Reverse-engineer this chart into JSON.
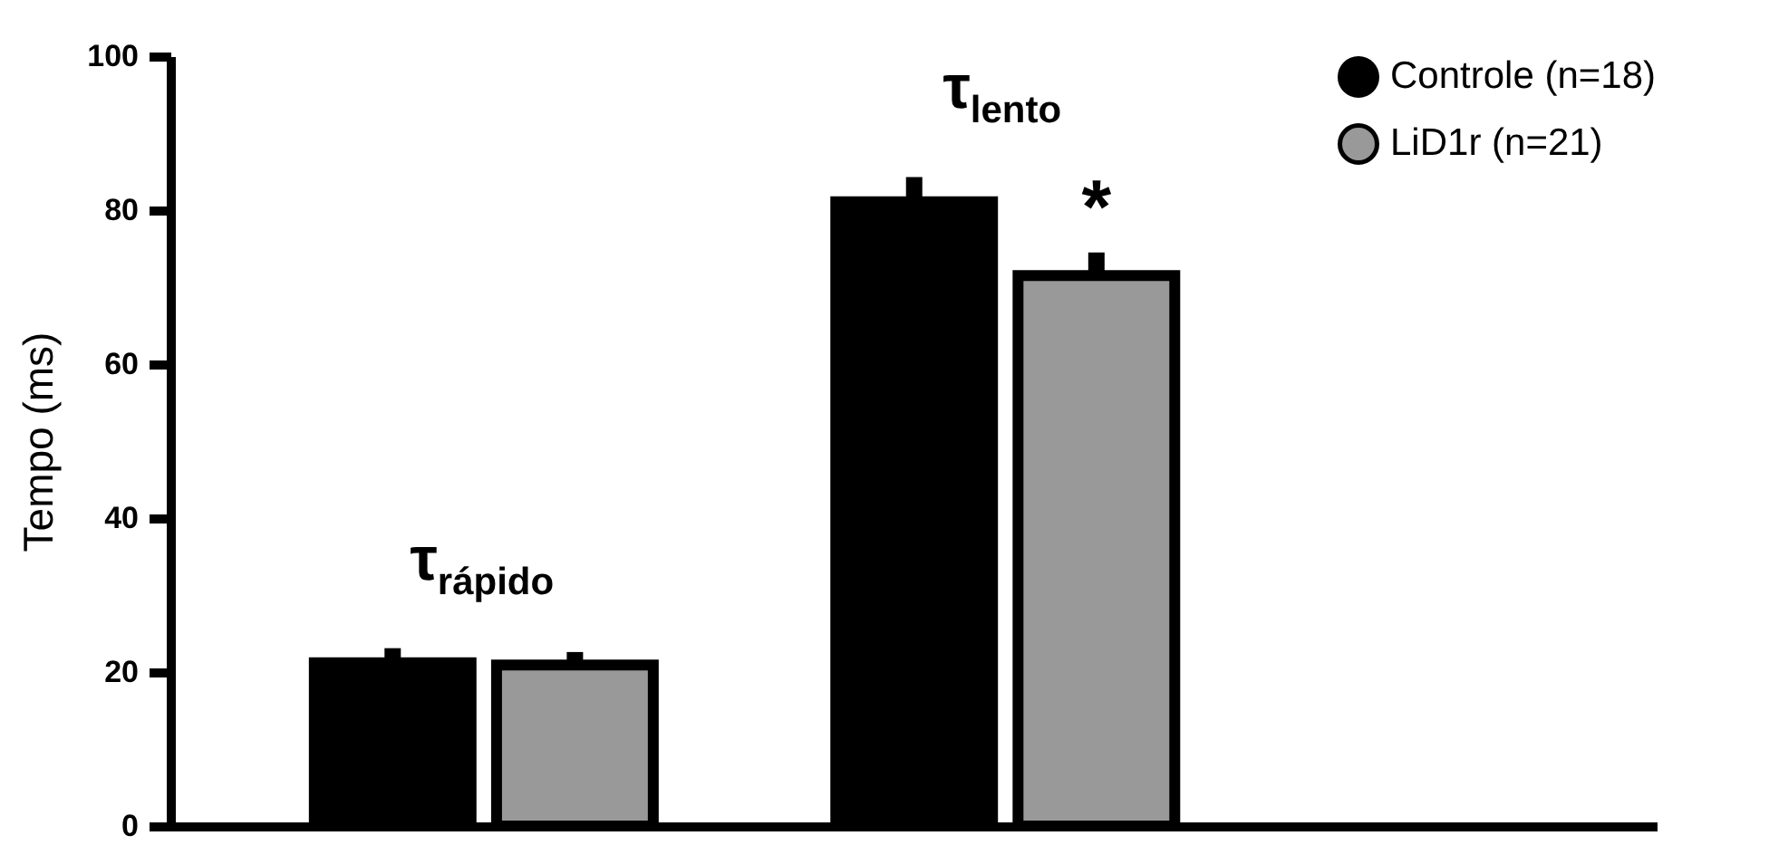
{
  "chart_data": {
    "type": "bar",
    "ylabel": "Tempo (ms)",
    "categories": [
      null,
      null
    ],
    "series": [
      {
        "name": "Controle (n=18)",
        "color": "#000000",
        "values": [
          21.2,
          81.1
        ],
        "errors": [
          1.9,
          3.2
        ]
      },
      {
        "name": "LiD1r (n=21)",
        "color": "#999999",
        "values": [
          20.9,
          71.5
        ],
        "errors": [
          1.7,
          3.0
        ]
      }
    ],
    "annotations": [
      "τ$_{rápido}$",
      "τ$_{lento}$",
      "*"
    ],
    "ylim": [
      0,
      100
    ],
    "yticks": [
      0,
      20,
      40,
      60,
      80,
      100
    ],
    "grid": false,
    "legend": "top right"
  }
}
